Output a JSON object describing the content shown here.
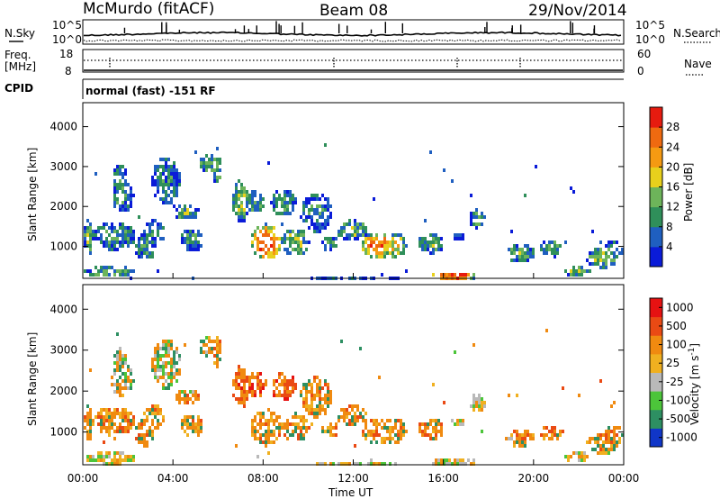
{
  "header": {
    "site": "McMurdo (fitACF)",
    "beam": "Beam 08",
    "date": "29/Nov/2014"
  },
  "strips": {
    "nsky_label": "N.Sky",
    "nsearch_label": "N.Search",
    "noise_ticks_left": [
      "10^5",
      "10^0"
    ],
    "noise_ticks_right": [
      "10^5",
      "10^0"
    ],
    "freq_label_1": "Freq.",
    "freq_label_2": "[MHz]",
    "freq_ticks": [
      "18",
      "8"
    ],
    "nave_label": "Nave",
    "nave_ticks": [
      "60",
      "0"
    ],
    "cpid_label": "CPID",
    "cpid_text": "normal (fast) -151 RF"
  },
  "colors": {
    "power": [
      "#0a1bd8",
      "#1f5fc0",
      "#2f8f5a",
      "#6db45a",
      "#e8d01c",
      "#f59a12",
      "#ef6a10",
      "#e61b0f"
    ],
    "velocity": [
      "#1036c8",
      "#2d8f62",
      "#4cc53a",
      "#b9b9b9",
      "#f0b020",
      "#f08a10",
      "#ea4a14",
      "#e61212"
    ]
  },
  "chart_data": [
    {
      "type": "heatmap",
      "name": "power",
      "ylabel": "Slant Range [km]",
      "yticks": [
        "1000",
        "2000",
        "3000",
        "4000"
      ],
      "ylim": [
        200,
        4600
      ],
      "xticks": [
        "00:00",
        "04:00",
        "08:00",
        "12:00",
        "16:00",
        "20:00",
        "00:00"
      ],
      "xlim": [
        0,
        24
      ],
      "colorbar_label": "Power [dB]",
      "colorbar_ticks": [
        "4",
        "8",
        "12",
        "16",
        "20",
        "24",
        "28"
      ],
      "colorbar_range": [
        0,
        30
      ]
    },
    {
      "type": "heatmap",
      "name": "velocity",
      "ylabel": "Slant Range [km]",
      "yticks": [
        "1000",
        "2000",
        "3000",
        "4000"
      ],
      "ylim": [
        200,
        4600
      ],
      "xticks": [
        "00:00",
        "04:00",
        "08:00",
        "12:00",
        "16:00",
        "20:00",
        "00:00"
      ],
      "xlabel": "Time UT",
      "xlim": [
        0,
        24
      ],
      "colorbar_label": "Velocity [m s^-1]",
      "colorbar_ticks": [
        "1000",
        "500",
        "100",
        "25",
        "-25",
        "-100",
        "-500",
        "-1000"
      ],
      "colorbar_range": [
        -1000,
        1000
      ]
    }
  ]
}
